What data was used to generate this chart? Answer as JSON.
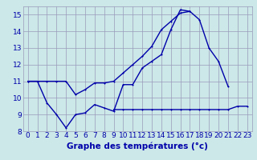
{
  "title": "Graphe des températures (°c)",
  "background_color": "#cce8e8",
  "grid_color": "#9999bb",
  "line_color": "#0000aa",
  "hours": [
    0,
    1,
    2,
    3,
    4,
    5,
    6,
    7,
    8,
    9,
    10,
    11,
    12,
    13,
    14,
    15,
    16,
    17,
    18,
    19,
    20,
    21,
    22,
    23
  ],
  "line1": [
    11.0,
    11.0,
    9.7,
    9.0,
    8.2,
    9.0,
    9.1,
    9.6,
    9.4,
    9.2,
    10.8,
    10.8,
    11.8,
    12.2,
    12.6,
    14.1,
    15.3,
    15.2,
    null,
    null,
    null,
    null,
    null,
    null
  ],
  "line2": [
    11.0,
    11.0,
    11.0,
    11.0,
    11.0,
    10.2,
    10.5,
    10.9,
    10.9,
    11.0,
    11.5,
    12.0,
    12.5,
    13.1,
    14.1,
    14.6,
    15.1,
    15.2,
    14.7,
    13.0,
    12.2,
    10.7,
    null,
    null
  ],
  "line3": [
    null,
    null,
    null,
    null,
    null,
    null,
    null,
    null,
    null,
    9.3,
    9.3,
    9.3,
    9.3,
    9.3,
    9.3,
    9.3,
    9.3,
    9.3,
    9.3,
    9.3,
    9.3,
    9.3,
    9.5,
    9.5
  ],
  "ylim": [
    8,
    15.5
  ],
  "yticks": [
    8,
    9,
    10,
    11,
    12,
    13,
    14,
    15
  ],
  "xlabel_fontsize": 7.5,
  "tick_fontsize": 6.5
}
